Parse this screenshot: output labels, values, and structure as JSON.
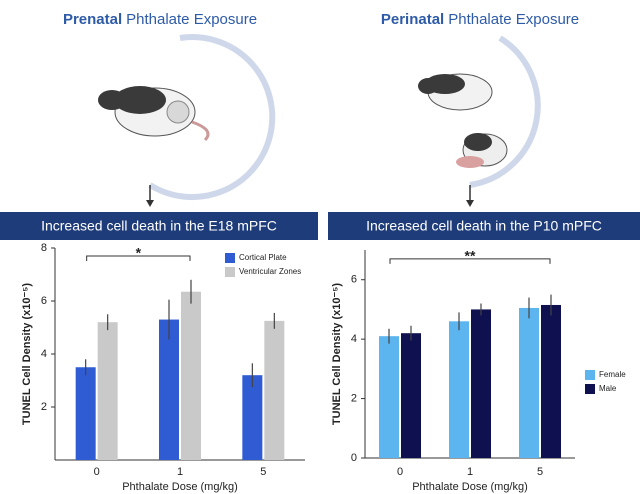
{
  "chart_data": [
    {
      "type": "bar",
      "header_emphasis": "Prenatal",
      "header": "Phthalate Exposure",
      "title": "Increased cell death in the E18 mPFC",
      "ylabel": "TUNEL Cell Density (x10⁻⁵)",
      "xlabel": "Phthalate Dose (mg/kg)",
      "categories": [
        "0",
        "1",
        "5"
      ],
      "series": [
        {
          "name": "Cortical Plate",
          "color": "#2f5bd3",
          "values": [
            3.5,
            5.3,
            3.2
          ],
          "errors": [
            0.3,
            0.75,
            0.45
          ]
        },
        {
          "name": "Ventricular Zones",
          "color": "#c9c9c9",
          "values": [
            5.2,
            6.35,
            5.25
          ],
          "errors": [
            0.3,
            0.45,
            0.3
          ]
        }
      ],
      "ylim": [
        0,
        8
      ],
      "yticks": [
        2,
        4,
        6,
        8
      ],
      "annotation": "*",
      "legend": "upper right"
    },
    {
      "type": "bar",
      "header_emphasis": "Perinatal",
      "header": "Phthalate Exposure",
      "title": "Increased cell death in the P10 mPFC",
      "ylabel": "TUNEL Cell Density (x10⁻⁵)",
      "xlabel": "Phthalate Dose (mg/kg)",
      "categories": [
        "0",
        "1",
        "5"
      ],
      "series": [
        {
          "name": "Female",
          "color": "#5cb5ee",
          "values": [
            4.1,
            4.6,
            5.05
          ],
          "errors": [
            0.25,
            0.3,
            0.35
          ]
        },
        {
          "name": "Male",
          "color": "#0e1050",
          "values": [
            4.2,
            5.0,
            5.15
          ],
          "errors": [
            0.25,
            0.2,
            0.35
          ]
        }
      ],
      "ylim": [
        0,
        7
      ],
      "yticks": [
        0,
        2,
        4,
        6
      ],
      "annotation": "**",
      "legend": "right"
    }
  ]
}
